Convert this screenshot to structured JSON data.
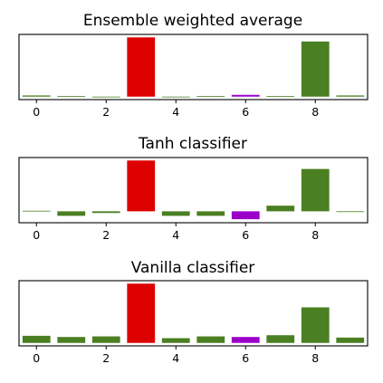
{
  "chart_data": [
    {
      "type": "bar",
      "title": "Ensemble weighted average",
      "xlabel": "",
      "ylabel": "",
      "categories": [
        0,
        1,
        2,
        3,
        4,
        5,
        6,
        7,
        8,
        9
      ],
      "values": [
        0.02,
        0.01,
        0.0,
        1.0,
        0.0,
        0.01,
        0.03,
        0.01,
        0.93,
        0.02
      ],
      "bar_colors": [
        "#4a7f22",
        "#4a7f22",
        "#4a7f22",
        "#dd0000",
        "#4a7f22",
        "#4a7f22",
        "#9b00c8",
        "#4a7f22",
        "#4a7f22",
        "#4a7f22"
      ],
      "xticks": [
        0,
        2,
        4,
        6,
        8
      ],
      "ylim": [
        0,
        1.0
      ],
      "grid": false,
      "yaxis_ticks_shown": false
    },
    {
      "type": "bar",
      "title": "Tanh classifier",
      "xlabel": "",
      "ylabel": "",
      "categories": [
        0,
        1,
        2,
        3,
        4,
        5,
        6,
        7,
        8,
        9
      ],
      "values": [
        0.01,
        -0.08,
        -0.03,
        0.9,
        -0.08,
        -0.08,
        -0.14,
        0.1,
        0.75,
        -0.01
      ],
      "bar_colors": [
        "#4a7f22",
        "#4a7f22",
        "#4a7f22",
        "#dd0000",
        "#4a7f22",
        "#4a7f22",
        "#9b00c8",
        "#4a7f22",
        "#4a7f22",
        "#4a7f22"
      ],
      "xticks": [
        0,
        2,
        4,
        6,
        8
      ],
      "ylim": [
        -0.15,
        0.9
      ],
      "grid": false,
      "yaxis_ticks_shown": false
    },
    {
      "type": "bar",
      "title": "Vanilla classifier",
      "xlabel": "",
      "ylabel": "",
      "categories": [
        0,
        1,
        2,
        3,
        4,
        5,
        6,
        7,
        8,
        9
      ],
      "values": [
        0.12,
        0.1,
        0.11,
        1.0,
        0.08,
        0.11,
        0.1,
        0.13,
        0.6,
        0.09
      ],
      "bar_colors": [
        "#4a7f22",
        "#4a7f22",
        "#4a7f22",
        "#dd0000",
        "#4a7f22",
        "#4a7f22",
        "#9b00c8",
        "#4a7f22",
        "#4a7f22",
        "#4a7f22"
      ],
      "xticks": [
        0,
        2,
        4,
        6,
        8
      ],
      "ylim": [
        0,
        1.0
      ],
      "grid": false,
      "yaxis_ticks_shown": false
    }
  ]
}
